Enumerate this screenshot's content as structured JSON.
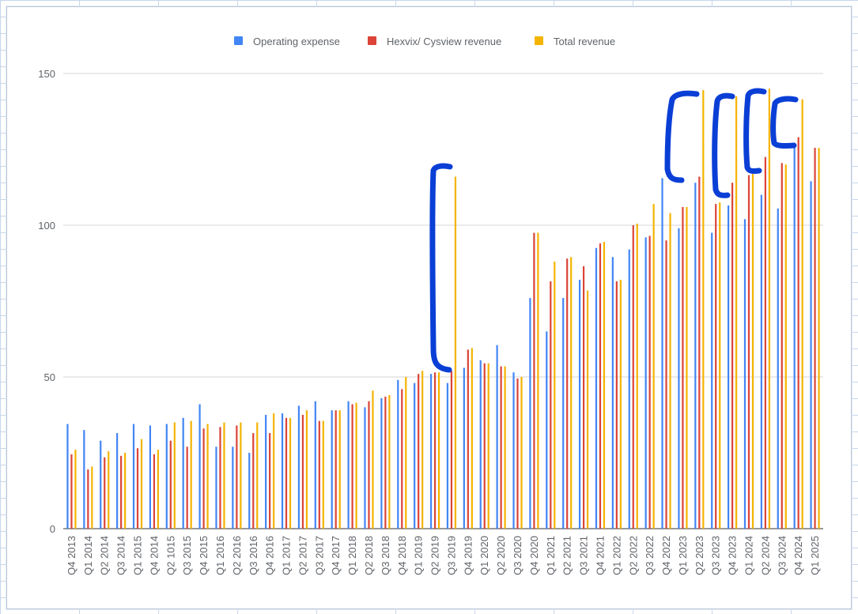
{
  "chart_data": {
    "type": "bar",
    "title": "",
    "xlabel": "",
    "ylabel": "",
    "ylim": [
      0,
      150
    ],
    "yticks": [
      0,
      50,
      100,
      150
    ],
    "grid": true,
    "legend_position": "top",
    "categories": [
      "Q4 2013",
      "Q1 2014",
      "Q2 2014",
      "Q3 2014",
      "Q1 2015",
      "Q4 2014",
      "Q2 1015",
      "Q3 2015",
      "Q4 2015",
      "Q1 2016",
      "Q2 2016",
      "Q3 2016",
      "Q4 2016",
      "Q1 2017",
      "Q2 2017",
      "Q3 2017",
      "Q4 2017",
      "Q1 2018",
      "Q2 2018",
      "Q3 2018",
      "Q4 2018",
      "Q1 2019",
      "Q2 2019",
      "Q3 2019",
      "Q4 2019",
      "Q1 2020",
      "Q2 2020",
      "Q3 2020",
      "Q4 2020",
      "Q1 2021",
      "Q2 2021",
      "Q3 2021",
      "Q4 2021",
      "Q1 2022",
      "Q2 2022",
      "Q3 2022",
      "Q4 2022",
      "Q1 2023",
      "Q2 2023",
      "Q3 2023",
      "Q4 2023",
      "Q1 2024",
      "Q2 2024",
      "Q3 2024",
      "Q4 2024",
      "Q1 2025"
    ],
    "series": [
      {
        "name": "Operating expense",
        "color": "#4285f4",
        "values": [
          34.5,
          32.5,
          29,
          31.5,
          34.5,
          34,
          34.5,
          36.5,
          41,
          27,
          27,
          25,
          37.5,
          38,
          40.5,
          42,
          39,
          42,
          40,
          43,
          49,
          48,
          51,
          48,
          53,
          55.5,
          60.5,
          51.5,
          76,
          65,
          76,
          82,
          92.5,
          89.5,
          92,
          96,
          115.5,
          99,
          114,
          97.5,
          106.5,
          102,
          110,
          105.5,
          127,
          114.5
        ]
      },
      {
        "name": "Hexvix/ Cysview revenue",
        "color": "#db4437",
        "values": [
          24.5,
          19.5,
          23.5,
          24,
          26.5,
          24.5,
          29,
          27,
          33,
          33.5,
          34,
          31.5,
          31.5,
          36.5,
          37.5,
          35.5,
          39,
          41,
          42,
          43.5,
          46,
          51,
          51.5,
          52,
          59,
          54.5,
          53.5,
          49.5,
          97.5,
          81.5,
          89,
          86.5,
          94,
          81.5,
          100,
          96.5,
          95,
          106,
          116,
          107,
          114,
          116.5,
          122.5,
          120.5,
          129,
          125.5
        ]
      },
      {
        "name": "Total revenue",
        "color": "#f4b400",
        "values": [
          26,
          20.5,
          25.5,
          25,
          29.5,
          26,
          35,
          35.5,
          34.5,
          35,
          35,
          35,
          38,
          36.5,
          39,
          35.5,
          39,
          41.5,
          45.5,
          44,
          50,
          52,
          51.5,
          116,
          59.5,
          54.5,
          53.5,
          50,
          97.5,
          88,
          89.5,
          78.5,
          94.5,
          82,
          100.5,
          107,
          104,
          106,
          144.5,
          107.5,
          142.5,
          117,
          145,
          120,
          141.5,
          125.5
        ]
      }
    ]
  },
  "annotations": {
    "bracket_color": "#0a3fd6"
  }
}
